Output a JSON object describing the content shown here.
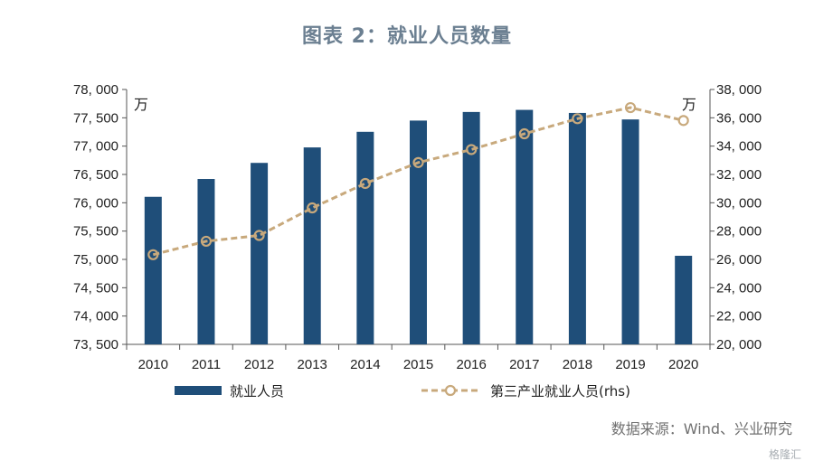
{
  "title": "图表 2：就业人员数量",
  "source": "数据来源：Wind、兴业研究",
  "watermark": "格隆汇",
  "colors": {
    "bar": "#1f4e79",
    "line": "#c8a97c",
    "title": "#6b7f91"
  },
  "chart_data": {
    "type": "bar",
    "categories": [
      "2010",
      "2011",
      "2012",
      "2013",
      "2014",
      "2015",
      "2016",
      "2017",
      "2018",
      "2019",
      "2020"
    ],
    "unit_left": "万",
    "unit_right": "万",
    "left_axis": {
      "ylim": [
        73500,
        78000
      ],
      "ticks": [
        73500,
        74000,
        74500,
        75000,
        75500,
        76000,
        76500,
        77000,
        77500,
        78000
      ]
    },
    "right_axis": {
      "ylim": [
        20000,
        38000
      ],
      "ticks": [
        20000,
        22000,
        24000,
        26000,
        28000,
        30000,
        32000,
        34000,
        36000,
        38000
      ]
    },
    "series": [
      {
        "name": "就业人员",
        "type": "bar",
        "axis": "left",
        "values": [
          76105,
          76420,
          76704,
          76977,
          77253,
          77451,
          77603,
          77640,
          77586,
          77471,
          75064
        ]
      },
      {
        "name": "第三产业就业人员(rhs)",
        "type": "line",
        "axis": "right",
        "values": [
          26332,
          27282,
          27690,
          29636,
          31364,
          32839,
          33757,
          34872,
          35938,
          36721,
          35806
        ]
      }
    ],
    "legend": "bottom",
    "grid": false
  }
}
